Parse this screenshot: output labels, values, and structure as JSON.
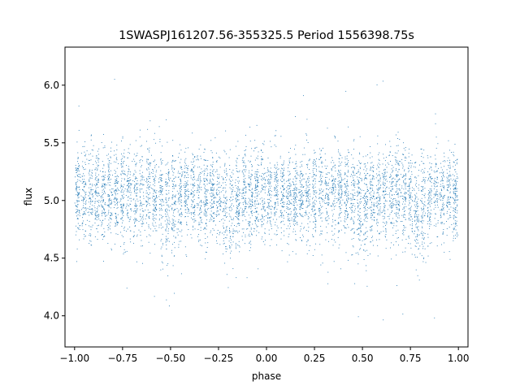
{
  "chart_data": {
    "type": "scatter",
    "title": "1SWASPJ161207.56-355325.5 Period 1556398.75s",
    "xlabel": "phase",
    "ylabel": "flux",
    "xlim": [
      -1.05,
      1.05
    ],
    "ylim": [
      3.73,
      6.33
    ],
    "xticks": [
      -1.0,
      -0.75,
      -0.5,
      -0.25,
      0.0,
      0.25,
      0.5,
      0.75,
      1.0
    ],
    "xtick_labels": [
      "−1.00",
      "−0.75",
      "−0.50",
      "−0.25",
      "0.00",
      "0.25",
      "0.50",
      "0.75",
      "1.00"
    ],
    "yticks": [
      4.0,
      4.5,
      5.0,
      5.5,
      6.0
    ],
    "ytick_labels": [
      "4.0",
      "4.5",
      "5.0",
      "5.5",
      "6.0"
    ],
    "grid": false,
    "marker_color": "#1f77b4",
    "phase_range": [
      -1.0,
      1.0
    ],
    "median_flux": 5.05,
    "flux_spread": 0.2,
    "dip_phases": [
      -0.5,
      -0.2,
      0.5,
      0.8
    ],
    "dip_depth": 0.25
  }
}
